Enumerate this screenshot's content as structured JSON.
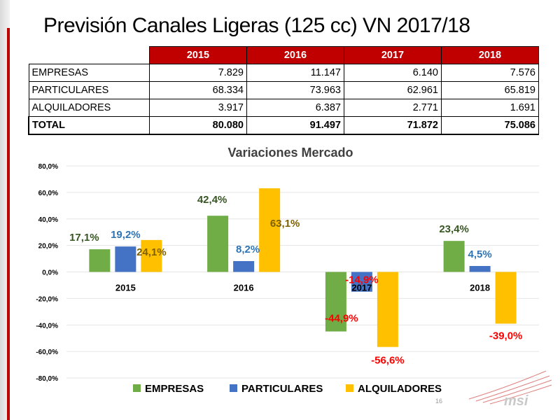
{
  "slide": {
    "title": "Previsión Canales Ligeras (125 cc) VN 2017/18",
    "page_number": "16",
    "logo_text": "msi"
  },
  "table": {
    "headers": [
      "",
      "2015",
      "2016",
      "2017",
      "2018"
    ],
    "rows": [
      {
        "label": "EMPRESAS",
        "values": [
          "7.829",
          "11.147",
          "6.140",
          "7.576"
        ]
      },
      {
        "label": "PARTICULARES",
        "values": [
          "68.334",
          "73.963",
          "62.961",
          "65.819"
        ]
      },
      {
        "label": "ALQUILADORES",
        "values": [
          "3.917",
          "6.387",
          "2.771",
          "1.691"
        ]
      }
    ],
    "total": {
      "label": "TOTAL",
      "values": [
        "80.080",
        "91.497",
        "71.872",
        "75.086"
      ]
    }
  },
  "chart_data": {
    "type": "bar",
    "title": "Variaciones Mercado",
    "categories": [
      "2015",
      "2016",
      "2017",
      "2018"
    ],
    "ylim": [
      -80,
      80
    ],
    "yticks": [
      "80,0%",
      "60,0%",
      "40,0%",
      "20,0%",
      "0,0%",
      "-20,0%",
      "-40,0%",
      "-60,0%",
      "-80,0%"
    ],
    "ytick_values": [
      80,
      60,
      40,
      20,
      0,
      -20,
      -40,
      -60,
      -80
    ],
    "grid": true,
    "legend_position": "bottom",
    "series": [
      {
        "name": "EMPRESAS",
        "color": "#70ad47",
        "values": [
          17.1,
          42.4,
          -44.9,
          23.4
        ],
        "labels": [
          "17,1%",
          "42,4%",
          "-44,9%",
          "23,4%"
        ]
      },
      {
        "name": "PARTICULARES",
        "color": "#4472c4",
        "values": [
          19.2,
          8.2,
          -14.9,
          4.5
        ],
        "labels": [
          "19,2%",
          "8,2%",
          "-14,9%",
          "4,5%"
        ]
      },
      {
        "name": "ALQUILADORES",
        "color": "#ffc000",
        "values": [
          24.1,
          63.1,
          -56.6,
          -39.0
        ],
        "labels": [
          "24,1%",
          "63,1%",
          "-56,6%",
          "-39,0%"
        ]
      }
    ],
    "label_colors": {
      "positive_empresas": "#375623",
      "positive_particulares": "#2e74b5",
      "positive_alquiladores": "#7f6000",
      "negative": "#ff0000"
    }
  }
}
